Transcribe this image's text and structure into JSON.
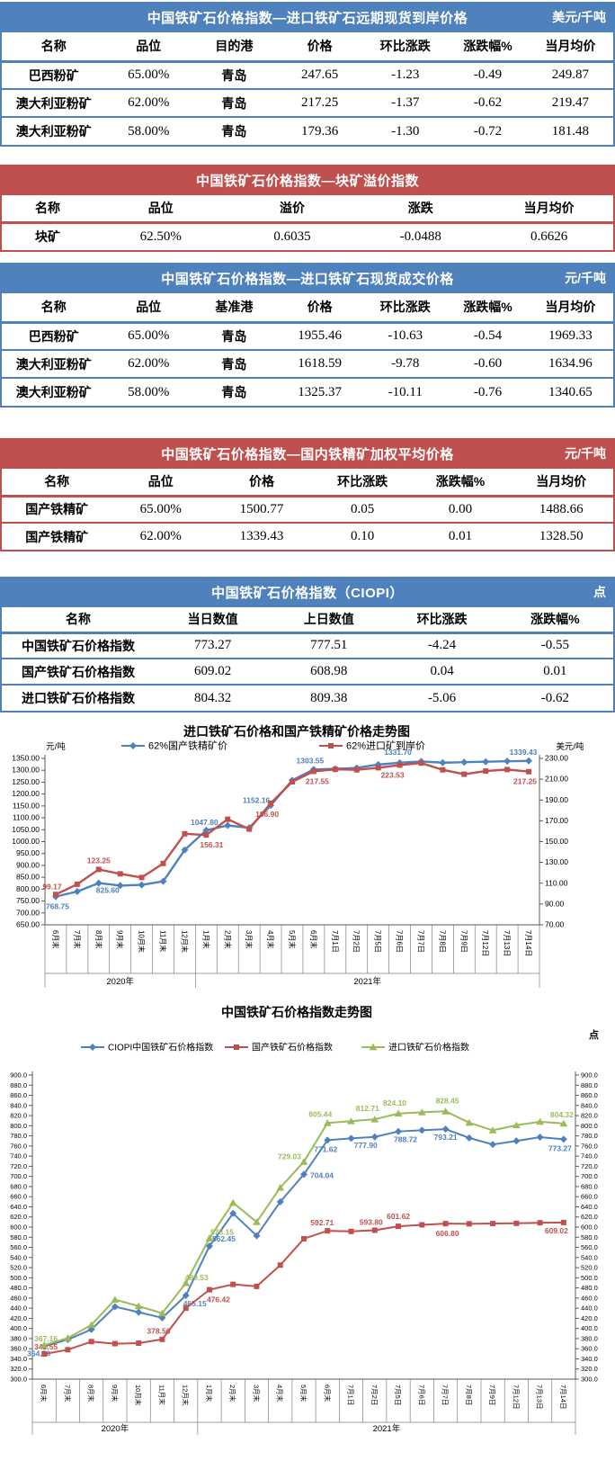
{
  "colors": {
    "blue": "#4F81BD",
    "red": "#C0504D",
    "green": "#9BBB59"
  },
  "tables": [
    {
      "id": "import-forward-cfr",
      "theme": "blue",
      "title": "中国铁矿石价格指数—进口铁矿石远期现货到岸价格",
      "unit": "美元/千吨",
      "columns": [
        "名称",
        "品位",
        "目的港",
        "价格",
        "环比涨跌",
        "涨跌幅%",
        "当月均价"
      ],
      "rows": [
        [
          "巴西粉矿",
          "65.00%",
          "青岛",
          "247.65",
          "-1.23",
          "-0.49",
          "249.87"
        ],
        [
          "澳大利亚粉矿",
          "62.00%",
          "青岛",
          "217.25",
          "-1.37",
          "-0.62",
          "219.47"
        ],
        [
          "澳大利亚粉矿",
          "58.00%",
          "青岛",
          "179.36",
          "-1.30",
          "-0.72",
          "181.48"
        ]
      ]
    },
    {
      "id": "lump-premium",
      "theme": "red",
      "title": "中国铁矿石价格指数—块矿溢价指数",
      "unit": "",
      "columns": [
        "名称",
        "品位",
        "溢价",
        "涨跌",
        "当月均价"
      ],
      "rows": [
        [
          "块矿",
          "62.50%",
          "0.6035",
          "-0.0488",
          "0.6626"
        ]
      ]
    },
    {
      "id": "import-spot-transaction",
      "theme": "blue",
      "title": "中国铁矿石价格指数—进口铁矿石现货成交价格",
      "unit": "元/千吨",
      "columns": [
        "名称",
        "品位",
        "基准港",
        "价格",
        "环比涨跌",
        "涨跌幅%",
        "当月均价"
      ],
      "rows": [
        [
          "巴西粉矿",
          "65.00%",
          "青岛",
          "1955.46",
          "-10.63",
          "-0.54",
          "1969.33"
        ],
        [
          "澳大利亚粉矿",
          "62.00%",
          "青岛",
          "1618.59",
          "-9.78",
          "-0.60",
          "1634.96"
        ],
        [
          "澳大利亚粉矿",
          "58.00%",
          "青岛",
          "1325.37",
          "-10.11",
          "-0.76",
          "1340.65"
        ]
      ]
    },
    {
      "id": "domestic-concentrate",
      "theme": "red",
      "title": "中国铁矿石价格指数—国内铁精矿加权平均价格",
      "unit": "元/千吨",
      "columns": [
        "名称",
        "品位",
        "价格",
        "环比涨跌",
        "涨跌幅%",
        "当月均价"
      ],
      "rows": [
        [
          "国产铁精矿",
          "65.00%",
          "1500.77",
          "0.05",
          "0.00",
          "1488.66"
        ],
        [
          "国产铁精矿",
          "62.00%",
          "1339.43",
          "0.10",
          "0.01",
          "1328.50"
        ]
      ]
    },
    {
      "id": "ciopi",
      "theme": "blue",
      "title": "中国铁矿石价格指数（CIOPI）",
      "unit": "点",
      "columns": [
        "名称",
        "当日数值",
        "上日数值",
        "环比涨跌",
        "涨跌幅%"
      ],
      "rows": [
        [
          "中国铁矿石价格指数",
          "773.27",
          "777.51",
          "-4.24",
          "-0.55"
        ],
        [
          "国产铁矿石价格指数",
          "609.02",
          "608.98",
          "0.04",
          "0.01"
        ],
        [
          "进口铁矿石价格指数",
          "804.32",
          "809.38",
          "-5.06",
          "-0.62"
        ]
      ]
    }
  ],
  "chart_data": [
    {
      "type": "line",
      "title": "进口铁矿石价格和国产铁精矿价格走势图",
      "grid": false,
      "legend_position": "top",
      "categories": [
        "6月末",
        "7月末",
        "8月末",
        "9月末",
        "10月末",
        "11月末",
        "12月末",
        "1月末",
        "2月末",
        "3月末",
        "4月末",
        "5月末",
        "6月末",
        "7月1日",
        "7月2日",
        "7月5日",
        "7月6日",
        "7月7日",
        "7月8日",
        "7月9日",
        "7月12日",
        "7月13日",
        "7月14日"
      ],
      "groups": [
        {
          "label": "2020年",
          "from": 0,
          "to": 6
        },
        {
          "label": "2021年",
          "from": 7,
          "to": 22
        }
      ],
      "left_axis": {
        "label": "元/吨",
        "min": 650,
        "max": 1350,
        "step": 50,
        "decimals": 2
      },
      "right_axis": {
        "label": "美元/吨",
        "min": 70,
        "max": 230,
        "step": 20,
        "decimals": 2
      },
      "series": [
        {
          "name": "62%国产铁精矿价",
          "color": "#4F81BD",
          "marker": "diamond",
          "axis": "left",
          "values": [
            768.75,
            790,
            825.6,
            815,
            818,
            833,
            965,
            1047.8,
            1068,
            1058,
            1152.16,
            1258,
            1303.55,
            1306,
            1310,
            1324,
            1331.7,
            1337,
            1332,
            1334,
            1336,
            1338,
            1339.43
          ],
          "point_labels": [
            {
              "i": 0,
              "text": "768.75",
              "dx": 2,
              "dy": 14
            },
            {
              "i": 2,
              "text": "825.60",
              "dx": 10,
              "dy": 11
            },
            {
              "i": 7,
              "text": "1047.80",
              "dx": -2,
              "dy": -6
            },
            {
              "i": 10,
              "text": "1152.16",
              "dx": -16,
              "dy": -3
            },
            {
              "i": 12,
              "text": "1303.55",
              "dx": -4,
              "dy": -7
            },
            {
              "i": 16,
              "text": "1331.70",
              "dx": -2,
              "dy": -9
            },
            {
              "i": 22,
              "text": "1339.43",
              "dx": -6,
              "dy": -7
            }
          ]
        },
        {
          "name": "62%进口矿到岸价",
          "color": "#C0504D",
          "marker": "square",
          "axis": "right",
          "values": [
            99.17,
            109,
            123.25,
            119,
            115.5,
            129,
            157.5,
            156.31,
            171.5,
            162,
            186.9,
            207.5,
            217.55,
            219.5,
            219,
            221,
            223.53,
            225.5,
            219,
            214.8,
            217.8,
            219.3,
            217.25
          ],
          "point_labels": [
            {
              "i": 0,
              "text": "99.17",
              "dx": -4,
              "dy": -6
            },
            {
              "i": 2,
              "text": "123.25",
              "dx": 0,
              "dy": -7
            },
            {
              "i": 7,
              "text": "156.31",
              "dx": 6,
              "dy": 14
            },
            {
              "i": 10,
              "text": "186.90",
              "dx": -4,
              "dy": 15
            },
            {
              "i": 12,
              "text": "217.55",
              "dx": 4,
              "dy": 14
            },
            {
              "i": 16,
              "text": "223.53",
              "dx": -8,
              "dy": 14
            },
            {
              "i": 22,
              "text": "217.25",
              "dx": -4,
              "dy": 14
            }
          ]
        }
      ]
    },
    {
      "type": "line",
      "title": "中国铁矿石价格指数走势图",
      "unit_label": "点",
      "grid": false,
      "legend_position": "top",
      "categories": [
        "6月末",
        "7月末",
        "8月末",
        "9月末",
        "10月末",
        "11月末",
        "12月末",
        "1月末",
        "2月末",
        "3月末",
        "4月末",
        "5月末",
        "6月末",
        "7月1日",
        "7月2日",
        "7月5日",
        "7月6日",
        "7月7日",
        "7月8日",
        "7月9日",
        "7月12日",
        "7月13日",
        "7月14日"
      ],
      "groups": [
        {
          "label": "2020年",
          "from": 0,
          "to": 6
        },
        {
          "label": "2021年",
          "from": 7,
          "to": 22
        }
      ],
      "left_axis": {
        "label": "",
        "min": 300,
        "max": 900,
        "step": 20,
        "decimals": 1
      },
      "right_axis": {
        "label": "",
        "min": 300,
        "max": 900,
        "step": 20,
        "decimals": 1
      },
      "series": [
        {
          "name": "CIOPI中国铁矿石价格指数",
          "color": "#4F81BD",
          "marker": "diamond",
          "axis": "left",
          "values": [
            364.56,
            378,
            398,
            443,
            432,
            421,
            465.15,
            562.45,
            627,
            583,
            650,
            704.04,
            771.62,
            775,
            777.9,
            788.72,
            791,
            793.21,
            776,
            763,
            770,
            777.5,
            773.27
          ],
          "point_labels": [
            {
              "i": 0,
              "text": "364.56",
              "dx": -6,
              "dy": 11
            },
            {
              "i": 6,
              "text": "465.15",
              "dx": 10,
              "dy": 12
            },
            {
              "i": 7,
              "text": "562.45",
              "dx": 16,
              "dy": -5
            },
            {
              "i": 11,
              "text": "704.04",
              "dx": 20,
              "dy": 4
            },
            {
              "i": 12,
              "text": "771.62",
              "dx": -2,
              "dy": 13
            },
            {
              "i": 14,
              "text": "777.90",
              "dx": -10,
              "dy": 12
            },
            {
              "i": 15,
              "text": "788.72",
              "dx": 8,
              "dy": 12
            },
            {
              "i": 17,
              "text": "793.21",
              "dx": 0,
              "dy": 12
            },
            {
              "i": 22,
              "text": "773.27",
              "dx": -4,
              "dy": 13
            }
          ]
        },
        {
          "name": "国产铁矿石价格指数",
          "color": "#C0504D",
          "marker": "square",
          "axis": "left",
          "values": [
            349.55,
            358,
            374,
            370,
            371,
            378.56,
            440,
            476.42,
            487,
            483,
            525,
            577,
            592.71,
            591.5,
            593.8,
            601.62,
            604.5,
            606.8,
            606.5,
            607,
            607.5,
            608.5,
            609.02
          ],
          "point_labels": [
            {
              "i": 0,
              "text": "349.55",
              "dx": 2,
              "dy": -5
            },
            {
              "i": 5,
              "text": "378.56",
              "dx": -4,
              "dy": -6
            },
            {
              "i": 7,
              "text": "476.42",
              "dx": 10,
              "dy": 14
            },
            {
              "i": 12,
              "text": "592.71",
              "dx": -6,
              "dy": -6
            },
            {
              "i": 14,
              "text": "593.80",
              "dx": -4,
              "dy": -6
            },
            {
              "i": 15,
              "text": "601.62",
              "dx": 0,
              "dy": -8
            },
            {
              "i": 17,
              "text": "606.80",
              "dx": 2,
              "dy": 14
            },
            {
              "i": 22,
              "text": "609.02",
              "dx": -8,
              "dy": 12
            }
          ]
        },
        {
          "name": "进口铁矿石价格指数",
          "color": "#9BBB59",
          "marker": "triangle",
          "axis": "left",
          "values": [
            367.16,
            381,
            407,
            457,
            444,
            430,
            489.53,
            578.15,
            648,
            610,
            678,
            729.03,
            805.44,
            809,
            812.71,
            824.1,
            826.5,
            828.45,
            806,
            791,
            801,
            808,
            804.32
          ],
          "point_labels": [
            {
              "i": 0,
              "text": "367.16",
              "dx": 2,
              "dy": -4
            },
            {
              "i": 6,
              "text": "489.53",
              "dx": 12,
              "dy": -3
            },
            {
              "i": 7,
              "text": "578.15",
              "dx": 14,
              "dy": -4
            },
            {
              "i": 11,
              "text": "729.03",
              "dx": -16,
              "dy": -3
            },
            {
              "i": 12,
              "text": "805.44",
              "dx": -8,
              "dy": -7
            },
            {
              "i": 14,
              "text": "812.71",
              "dx": -8,
              "dy": -9
            },
            {
              "i": 15,
              "text": "824.10",
              "dx": -4,
              "dy": -9
            },
            {
              "i": 17,
              "text": "828.45",
              "dx": 2,
              "dy": -9
            },
            {
              "i": 22,
              "text": "804.32",
              "dx": -2,
              "dy": -7
            }
          ]
        }
      ]
    }
  ]
}
